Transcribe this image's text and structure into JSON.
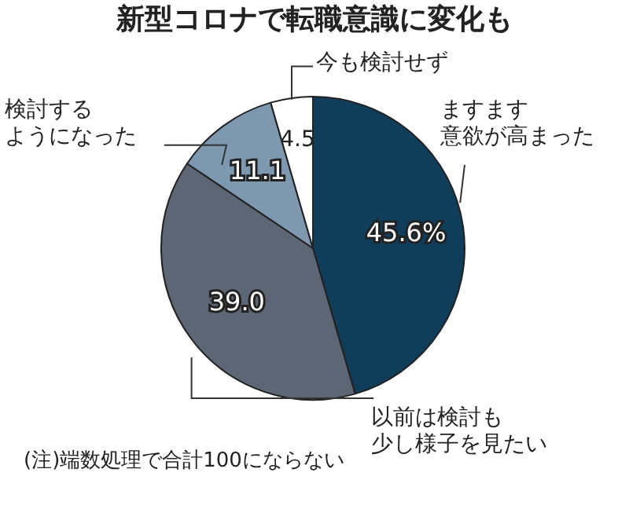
{
  "chart_data": {
    "type": "pie",
    "title": "新型コロナで転職意識に変化も",
    "categories": [
      "ますます意欲が高まった",
      "以前は検討も少し様子を見たい",
      "検討するようになった",
      "今も検討せず"
    ],
    "values": [
      45.6,
      39.0,
      11.1,
      4.5
    ],
    "colors": [
      "#0f3d5a",
      "#5c6675",
      "#7e98b0",
      "#ffffff"
    ],
    "value_labels": [
      "45.6%",
      "39.0",
      "11.1",
      "4.5"
    ],
    "legend": false,
    "annotations": [
      "(注)端数処理で合計100にならない"
    ]
  }
}
